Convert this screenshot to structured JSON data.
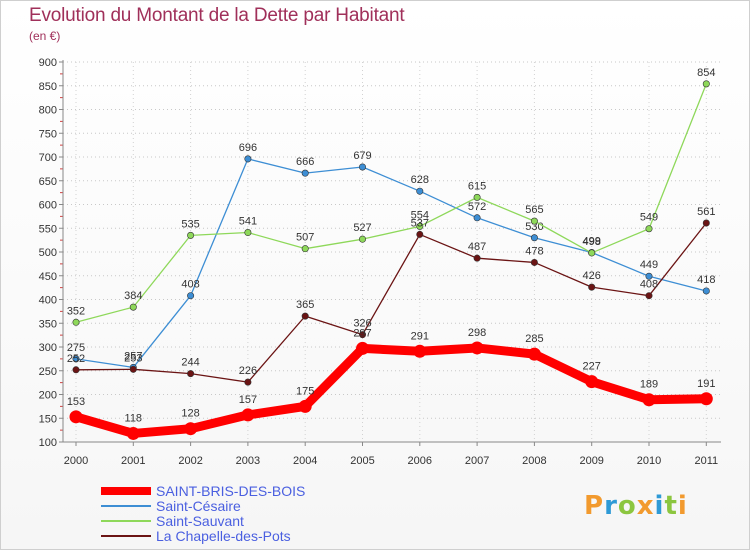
{
  "title": "Evolution du Montant de la Dette par Habitant",
  "unit_label": "(en €)",
  "brand": {
    "text": "Proxiti",
    "letters": [
      {
        "ch": "P",
        "tone": "c1"
      },
      {
        "ch": "r",
        "tone": "c2"
      },
      {
        "ch": "o",
        "tone": "c3"
      },
      {
        "ch": "x",
        "tone": "c1"
      },
      {
        "ch": "i",
        "tone": "c2"
      },
      {
        "ch": "t",
        "tone": "c3"
      },
      {
        "ch": "i",
        "tone": "c1"
      }
    ]
  },
  "chart_data": {
    "type": "line",
    "title": "Evolution du Montant de la Dette par Habitant",
    "subtitle": "(en €)",
    "xlabel": "",
    "ylabel": "",
    "x": [
      "2000",
      "2001",
      "2002",
      "2003",
      "2004",
      "2005",
      "2006",
      "2007",
      "2008",
      "2009",
      "2010",
      "2011"
    ],
    "ylim": [
      100,
      900
    ],
    "yticks": [
      100,
      150,
      200,
      250,
      300,
      350,
      400,
      450,
      500,
      550,
      600,
      650,
      700,
      750,
      800,
      850,
      900
    ],
    "grid": true,
    "legend_position": "bottom-left",
    "series": [
      {
        "name": "SAINT-BRIS-DES-BOIS",
        "color": "#ff0000",
        "emphasis": true,
        "values": [
          153,
          118,
          128,
          157,
          175,
          297,
          291,
          298,
          285,
          227,
          189,
          191
        ]
      },
      {
        "name": "Saint-Césaire",
        "color": "#3d8ed4",
        "values": [
          275,
          257,
          408,
          696,
          666,
          679,
          628,
          572,
          530,
          499,
          449,
          418
        ]
      },
      {
        "name": "Saint-Sauvant",
        "color": "#8ed85a",
        "values": [
          352,
          384,
          535,
          541,
          507,
          527,
          554,
          615,
          565,
          498,
          549,
          854
        ]
      },
      {
        "name": "La Chapelle-des-Pots",
        "color": "#6b1414",
        "values": [
          252,
          253,
          244,
          226,
          365,
          326,
          537,
          487,
          478,
          426,
          408,
          561
        ]
      }
    ]
  }
}
